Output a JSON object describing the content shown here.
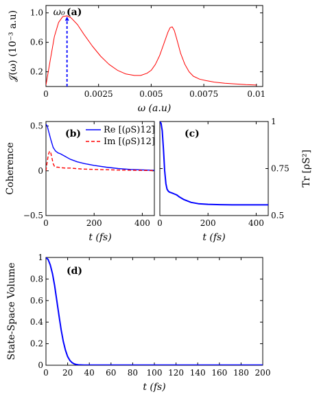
{
  "chart_data": [
    {
      "id": "a",
      "type": "line",
      "panel_label": "(a)",
      "xlabel": "ω (a.u)",
      "ylabel": "𝒥(ω) (10⁻³ a.u)",
      "xlim": [
        0,
        0.0103
      ],
      "ylim": [
        0,
        1.1
      ],
      "xticks": [
        "0",
        "0.0025",
        "0.005",
        "0.0075",
        "0.01"
      ],
      "xtick_values": [
        0,
        0.0025,
        0.005,
        0.0075,
        0.01
      ],
      "yticks": [
        "0.2",
        "0.6",
        "1.0"
      ],
      "ytick_values": [
        0.2,
        0.6,
        1.0
      ],
      "annotation": {
        "text": "ω₀",
        "x": 0.001,
        "y_top": 0.95,
        "color": "#0000ff",
        "style": "dashed"
      },
      "series": [
        {
          "color": "#ff0000",
          "x": [
            0,
            0.0002,
            0.0004,
            0.0006,
            0.0008,
            0.001,
            0.0012,
            0.0015,
            0.0018,
            0.0022,
            0.0026,
            0.003,
            0.0034,
            0.0038,
            0.0042,
            0.0045,
            0.0048,
            0.005,
            0.0052,
            0.0054,
            0.0056,
            0.0058,
            0.0059,
            0.006,
            0.0061,
            0.0062,
            0.0064,
            0.0066,
            0.0068,
            0.007,
            0.0073,
            0.0076,
            0.008,
            0.0085,
            0.009,
            0.0095,
            0.01
          ],
          "y": [
            0.02,
            0.35,
            0.68,
            0.87,
            0.95,
            0.96,
            0.93,
            0.84,
            0.71,
            0.55,
            0.41,
            0.3,
            0.22,
            0.17,
            0.15,
            0.15,
            0.18,
            0.22,
            0.3,
            0.42,
            0.58,
            0.74,
            0.8,
            0.81,
            0.76,
            0.66,
            0.45,
            0.3,
            0.2,
            0.14,
            0.1,
            0.08,
            0.06,
            0.045,
            0.035,
            0.025,
            0.02
          ]
        }
      ]
    },
    {
      "id": "b",
      "type": "line",
      "panel_label": "(b)",
      "xlabel": "t (fs)",
      "ylabel": "Coherence",
      "xlim": [
        0,
        450
      ],
      "ylim": [
        -0.5,
        0.55
      ],
      "xticks": [
        "0",
        "200",
        "400"
      ],
      "xtick_values": [
        0,
        200,
        400
      ],
      "yticks": [
        "−0.5",
        "0",
        "0.5"
      ],
      "ytick_values": [
        -0.5,
        0,
        0.5
      ],
      "series": [
        {
          "name": "Re [(ρS)12]",
          "color": "#0000ff",
          "style": "solid",
          "x": [
            0,
            5,
            10,
            20,
            30,
            40,
            50,
            60,
            80,
            100,
            130,
            160,
            200,
            250,
            300,
            350,
            400,
            450
          ],
          "y": [
            0.52,
            0.5,
            0.45,
            0.35,
            0.26,
            0.22,
            0.2,
            0.19,
            0.16,
            0.13,
            0.1,
            0.08,
            0.06,
            0.04,
            0.025,
            0.015,
            0.01,
            0.005
          ]
        },
        {
          "name": "Im [(ρS)12]",
          "color": "#ff0000",
          "style": "dashed",
          "x": [
            0,
            5,
            10,
            15,
            20,
            25,
            30,
            35,
            40,
            50,
            60,
            80,
            100,
            150,
            200,
            300,
            400,
            450
          ],
          "y": [
            0,
            0.1,
            0.18,
            0.22,
            0.2,
            0.14,
            0.08,
            0.05,
            0.04,
            0.04,
            0.035,
            0.03,
            0.03,
            0.02,
            0.015,
            0.008,
            0.004,
            0.002
          ]
        }
      ]
    },
    {
      "id": "c",
      "type": "line",
      "panel_label": "(c)",
      "xlabel": "t (fs)",
      "ylabel": "Tr [ρS²]",
      "xlim": [
        0,
        450
      ],
      "ylim": [
        0.5,
        1.0
      ],
      "xticks": [
        "0",
        "200",
        "400"
      ],
      "xtick_values": [
        0,
        200,
        400
      ],
      "yticks": [
        "0.5",
        "0.75",
        "1"
      ],
      "ytick_values": [
        0.5,
        0.75,
        1.0
      ],
      "series": [
        {
          "color": "#0000ff",
          "x": [
            0,
            5,
            10,
            15,
            20,
            25,
            30,
            35,
            40,
            50,
            60,
            70,
            80,
            100,
            130,
            160,
            200,
            250,
            300,
            400,
            450
          ],
          "y": [
            1.0,
            0.99,
            0.95,
            0.85,
            0.74,
            0.67,
            0.64,
            0.63,
            0.625,
            0.62,
            0.615,
            0.61,
            0.6,
            0.585,
            0.57,
            0.563,
            0.56,
            0.558,
            0.557,
            0.557,
            0.557
          ]
        }
      ]
    },
    {
      "id": "d",
      "type": "line",
      "panel_label": "(d)",
      "xlabel": "t (fs)",
      "ylabel": "State-Space Volume",
      "xlim": [
        0,
        200
      ],
      "ylim": [
        0,
        1.0
      ],
      "xticks": [
        "0",
        "20",
        "40",
        "60",
        "80",
        "100",
        "120",
        "140",
        "160",
        "180",
        "200"
      ],
      "xtick_values": [
        0,
        20,
        40,
        60,
        80,
        100,
        120,
        140,
        160,
        180,
        200
      ],
      "yticks": [
        "0",
        "0.2",
        "0.4",
        "0.6",
        "0.8",
        "1"
      ],
      "ytick_values": [
        0,
        0.2,
        0.4,
        0.6,
        0.8,
        1.0
      ],
      "series": [
        {
          "color": "#0000ff",
          "x": [
            0,
            2,
            4,
            6,
            8,
            10,
            12,
            14,
            16,
            18,
            20,
            22,
            24,
            26,
            28,
            30,
            35,
            40,
            60,
            100,
            200
          ],
          "y": [
            1.0,
            0.98,
            0.93,
            0.85,
            0.74,
            0.6,
            0.46,
            0.33,
            0.22,
            0.14,
            0.08,
            0.045,
            0.025,
            0.013,
            0.007,
            0.004,
            0.002,
            0.001,
            0.001,
            0.001,
            0.001
          ]
        }
      ]
    }
  ]
}
